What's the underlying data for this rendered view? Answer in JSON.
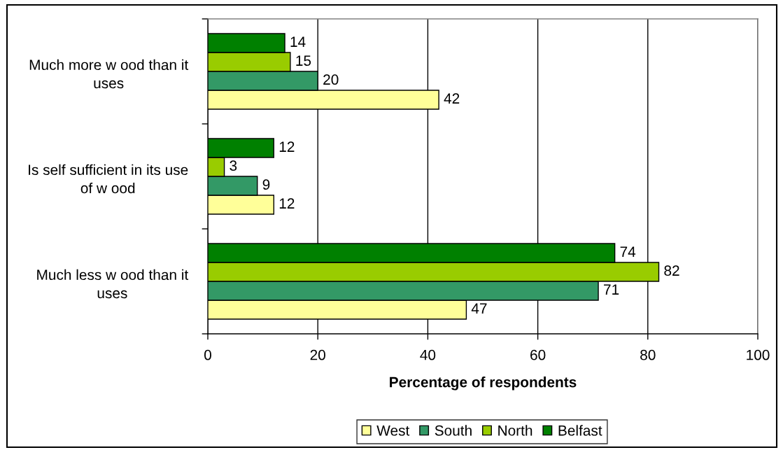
{
  "chart_data": {
    "type": "bar",
    "orientation": "horizontal",
    "categories": [
      "Much more w ood than it\nuses",
      "Is self sufficient in its use\nof w ood",
      "Much less w ood than it\nuses"
    ],
    "series": [
      {
        "name": "West",
        "color": "#ffff99",
        "values": [
          42,
          12,
          47
        ]
      },
      {
        "name": "South",
        "color": "#339966",
        "values": [
          20,
          9,
          71
        ]
      },
      {
        "name": "North",
        "color": "#99cc00",
        "values": [
          15,
          3,
          82
        ]
      },
      {
        "name": "Belfast",
        "color": "#008000",
        "values": [
          14,
          12,
          74
        ]
      }
    ],
    "xlabel": "Percentage of respondents",
    "xlim": [
      0,
      100
    ],
    "xticks": [
      0,
      20,
      40,
      60,
      80,
      100
    ],
    "grid": "x",
    "legend": "bottom",
    "data_labels": true
  }
}
